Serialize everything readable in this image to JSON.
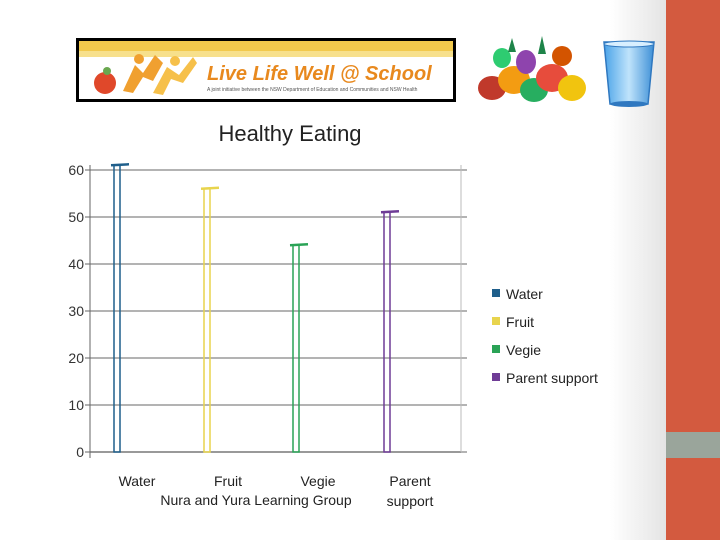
{
  "colors": {
    "strip_top": "#d35a3f",
    "strip_mid": "#9aa59b",
    "strip_bot": "#d35a3f",
    "water": "#1f5f8b",
    "fruit": "#e8d44d",
    "vegie": "#2aa356",
    "parent": "#6f3c96",
    "grid": "#9a9a9a"
  },
  "banner": {
    "logo_text": "Live Life Well @ School",
    "subtitle": "A joint initiative between the NSW Department of Education and Communities and NSW Health"
  },
  "icons": {
    "fruit": "fruit-basket-icon",
    "glass": "water-glass-icon"
  },
  "chart_data": {
    "type": "bar",
    "title": "Healthy Eating",
    "xlabel": "Nura and Yura Learning Group",
    "ylabel": "",
    "ylim": [
      0,
      60
    ],
    "yticks": [
      0,
      10,
      20,
      30,
      40,
      50,
      60
    ],
    "categories": [
      "Water",
      "Fruit",
      "Vegie",
      "Parent support"
    ],
    "series": [
      {
        "name": "Water",
        "values": [
          61,
          null,
          null,
          null
        ]
      },
      {
        "name": "Fruit",
        "values": [
          null,
          56,
          null,
          null
        ]
      },
      {
        "name": "Vegie",
        "values": [
          null,
          null,
          44,
          null
        ]
      },
      {
        "name": "Parent support",
        "values": [
          null,
          null,
          null,
          51
        ]
      }
    ],
    "legend_position": "right",
    "grid": true
  }
}
